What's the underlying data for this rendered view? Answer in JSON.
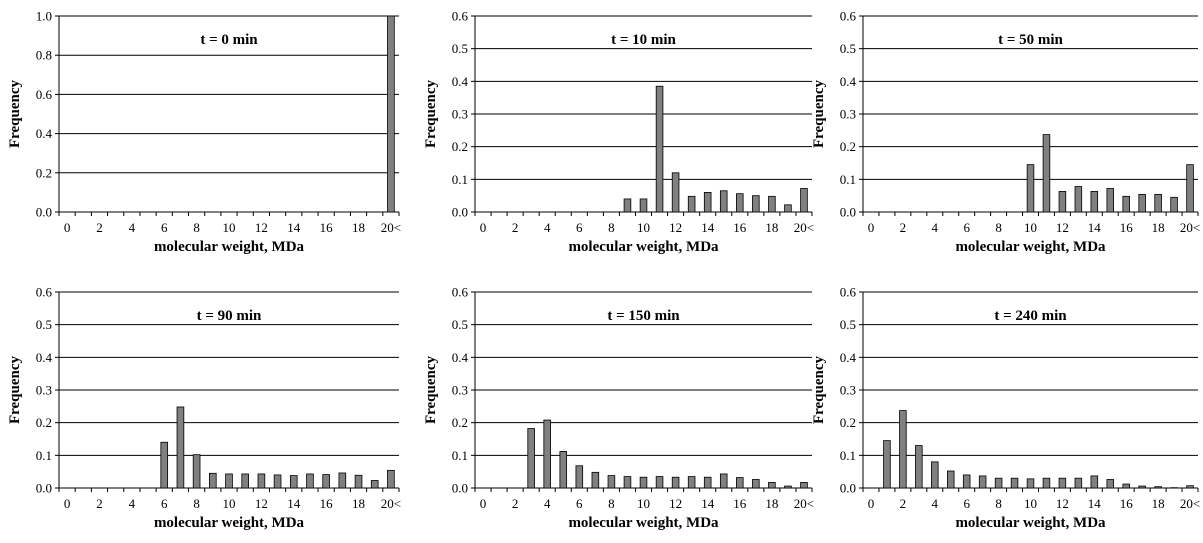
{
  "chart_data": [
    {
      "type": "bar",
      "title": "t = 0 min",
      "xlabel": "molecular weight, MDa",
      "ylabel": "Frequency",
      "ylim": [
        0,
        1.0
      ],
      "yticks": [
        "0.0",
        "0.2",
        "0.4",
        "0.6",
        "0.8",
        "1.0"
      ],
      "categories": [
        "0",
        "1",
        "2",
        "3",
        "4",
        "5",
        "6",
        "7",
        "8",
        "9",
        "10",
        "11",
        "12",
        "13",
        "14",
        "15",
        "16",
        "17",
        "18",
        "19",
        "20<"
      ],
      "xtick_labels": [
        "0",
        "2",
        "4",
        "6",
        "8",
        "10",
        "12",
        "14",
        "16",
        "18",
        "20<"
      ],
      "values": [
        0,
        0,
        0,
        0,
        0,
        0,
        0,
        0,
        0,
        0,
        0,
        0,
        0,
        0,
        0,
        0,
        0,
        0,
        0,
        0,
        1.0
      ],
      "grid": true,
      "bar_color": "#808080"
    },
    {
      "type": "bar",
      "title": "t = 10 min",
      "xlabel": "molecular weight, MDa",
      "ylabel": "Frequency",
      "ylim": [
        0,
        0.6
      ],
      "yticks": [
        "0.0",
        "0.1",
        "0.2",
        "0.3",
        "0.4",
        "0.5",
        "0.6"
      ],
      "categories": [
        "0",
        "1",
        "2",
        "3",
        "4",
        "5",
        "6",
        "7",
        "8",
        "9",
        "10",
        "11",
        "12",
        "13",
        "14",
        "15",
        "16",
        "17",
        "18",
        "19",
        "20<"
      ],
      "xtick_labels": [
        "0",
        "2",
        "4",
        "6",
        "8",
        "10",
        "12",
        "14",
        "16",
        "18",
        "20<"
      ],
      "values": [
        0,
        0,
        0,
        0,
        0,
        0,
        0,
        0,
        0,
        0.04,
        0.04,
        0.385,
        0.12,
        0.048,
        0.06,
        0.065,
        0.056,
        0.05,
        0.048,
        0.022,
        0.072
      ],
      "grid": true,
      "bar_color": "#808080"
    },
    {
      "type": "bar",
      "title": "t = 50 min",
      "xlabel": "molecular weight, MDa",
      "ylabel": "Frequency",
      "ylim": [
        0,
        0.6
      ],
      "yticks": [
        "0.0",
        "0.1",
        "0.2",
        "0.3",
        "0.4",
        "0.5",
        "0.6"
      ],
      "categories": [
        "0",
        "1",
        "2",
        "3",
        "4",
        "5",
        "6",
        "7",
        "8",
        "9",
        "10",
        "11",
        "12",
        "13",
        "14",
        "15",
        "16",
        "17",
        "18",
        "19",
        "20<"
      ],
      "xtick_labels": [
        "0",
        "2",
        "4",
        "6",
        "8",
        "10",
        "12",
        "14",
        "16",
        "18",
        "20<"
      ],
      "values": [
        0,
        0,
        0,
        0,
        0,
        0,
        0,
        0,
        0,
        0,
        0.145,
        0.237,
        0.063,
        0.078,
        0.063,
        0.072,
        0.048,
        0.054,
        0.054,
        0.045,
        0.145
      ],
      "grid": true,
      "bar_color": "#808080"
    },
    {
      "type": "bar",
      "title": "t = 90 min",
      "xlabel": "molecular weight, MDa",
      "ylabel": "Frequency",
      "ylim": [
        0,
        0.6
      ],
      "yticks": [
        "0.0",
        "0.1",
        "0.2",
        "0.3",
        "0.4",
        "0.5",
        "0.6"
      ],
      "categories": [
        "0",
        "1",
        "2",
        "3",
        "4",
        "5",
        "6",
        "7",
        "8",
        "9",
        "10",
        "11",
        "12",
        "13",
        "14",
        "15",
        "16",
        "17",
        "18",
        "19",
        "20<"
      ],
      "xtick_labels": [
        "0",
        "2",
        "4",
        "6",
        "8",
        "10",
        "12",
        "14",
        "16",
        "18",
        "20<"
      ],
      "values": [
        0,
        0,
        0,
        0,
        0,
        0,
        0.14,
        0.248,
        0.102,
        0.045,
        0.043,
        0.043,
        0.043,
        0.04,
        0.038,
        0.043,
        0.041,
        0.046,
        0.039,
        0.023,
        0.054
      ],
      "grid": true,
      "bar_color": "#808080"
    },
    {
      "type": "bar",
      "title": "t = 150 min",
      "xlabel": "molecular weight, MDa",
      "ylabel": "Frequency",
      "ylim": [
        0,
        0.6
      ],
      "yticks": [
        "0.0",
        "0.1",
        "0.2",
        "0.3",
        "0.4",
        "0.5",
        "0.6"
      ],
      "categories": [
        "0",
        "1",
        "2",
        "3",
        "4",
        "5",
        "6",
        "7",
        "8",
        "9",
        "10",
        "11",
        "12",
        "13",
        "14",
        "15",
        "16",
        "17",
        "18",
        "19",
        "20<"
      ],
      "xtick_labels": [
        "0",
        "2",
        "4",
        "6",
        "8",
        "10",
        "12",
        "14",
        "16",
        "18",
        "20<"
      ],
      "values": [
        0,
        0,
        0,
        0.182,
        0.208,
        0.112,
        0.068,
        0.048,
        0.038,
        0.035,
        0.033,
        0.035,
        0.033,
        0.035,
        0.033,
        0.043,
        0.032,
        0.026,
        0.017,
        0.006,
        0.017
      ],
      "grid": true,
      "bar_color": "#808080"
    },
    {
      "type": "bar",
      "title": "t = 240 min",
      "xlabel": "molecular weight, MDa",
      "ylabel": "Frequency",
      "ylim": [
        0,
        0.6
      ],
      "yticks": [
        "0.0",
        "0.1",
        "0.2",
        "0.3",
        "0.4",
        "0.5",
        "0.6"
      ],
      "categories": [
        "0",
        "1",
        "2",
        "3",
        "4",
        "5",
        "6",
        "7",
        "8",
        "9",
        "10",
        "11",
        "12",
        "13",
        "14",
        "15",
        "16",
        "17",
        "18",
        "19",
        "20<"
      ],
      "xtick_labels": [
        "0",
        "2",
        "4",
        "6",
        "8",
        "10",
        "12",
        "14",
        "16",
        "18",
        "20<"
      ],
      "values": [
        0,
        0.145,
        0.237,
        0.13,
        0.08,
        0.052,
        0.04,
        0.037,
        0.03,
        0.03,
        0.028,
        0.03,
        0.03,
        0.03,
        0.037,
        0.026,
        0.012,
        0.006,
        0.004,
        0.001,
        0.007
      ],
      "grid": true,
      "bar_color": "#808080"
    }
  ]
}
